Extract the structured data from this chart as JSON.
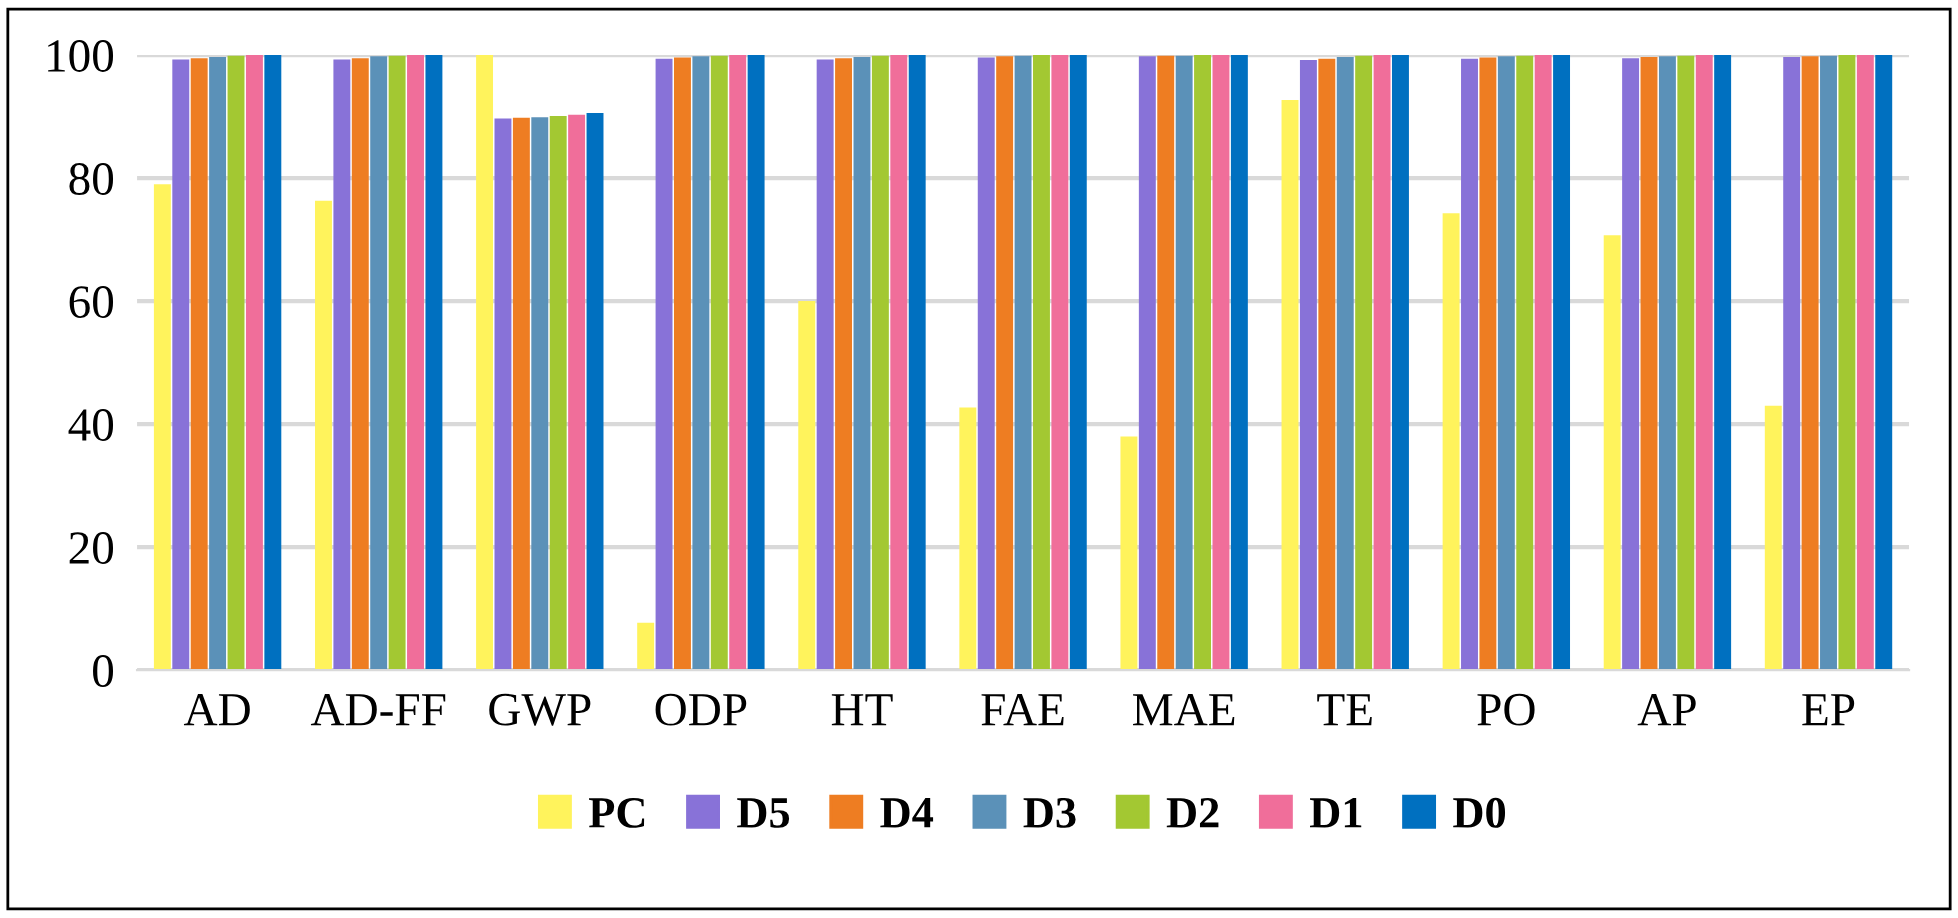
{
  "chart_data": {
    "type": "bar",
    "categories": [
      "AD",
      "AD-FF",
      "GWP",
      "ODP",
      "HT",
      "FAE",
      "MAE",
      "TE",
      "PO",
      "AP",
      "EP"
    ],
    "series": [
      {
        "name": "PC",
        "color": "#fff35c",
        "values": [
          79,
          76.3,
          100,
          7.7,
          60,
          42.7,
          38,
          92.7,
          74.3,
          70.7,
          43
        ]
      },
      {
        "name": "D5",
        "color": "#8872d8",
        "values": [
          99.3,
          99.3,
          89.7,
          99.4,
          99.3,
          99.6,
          99.8,
          99.2,
          99.4,
          99.5,
          99.7
        ]
      },
      {
        "name": "D4",
        "color": "#ee7d22",
        "values": [
          99.5,
          99.5,
          89.8,
          99.6,
          99.5,
          99.8,
          99.9,
          99.4,
          99.6,
          99.7,
          99.8
        ]
      },
      {
        "name": "D3",
        "color": "#5b91b8",
        "values": [
          99.7,
          99.8,
          89.9,
          99.8,
          99.7,
          99.9,
          99.9,
          99.7,
          99.8,
          99.8,
          99.9
        ]
      },
      {
        "name": "D2",
        "color": "#a3c832",
        "values": [
          99.9,
          99.9,
          90.1,
          99.9,
          99.9,
          100,
          100,
          99.9,
          99.9,
          99.9,
          100
        ]
      },
      {
        "name": "D1",
        "color": "#f06e9a",
        "values": [
          100,
          100,
          90.3,
          100,
          100,
          100,
          100,
          100,
          100,
          100,
          100
        ]
      },
      {
        "name": "D0",
        "color": "#0070c0",
        "values": [
          100,
          100,
          90.6,
          100,
          100,
          100,
          100,
          100,
          100,
          100,
          100
        ]
      }
    ],
    "ylim": [
      0,
      100
    ],
    "yticks": [
      0,
      20,
      40,
      60,
      80,
      100
    ],
    "grid": "y",
    "legend": "bottom"
  }
}
